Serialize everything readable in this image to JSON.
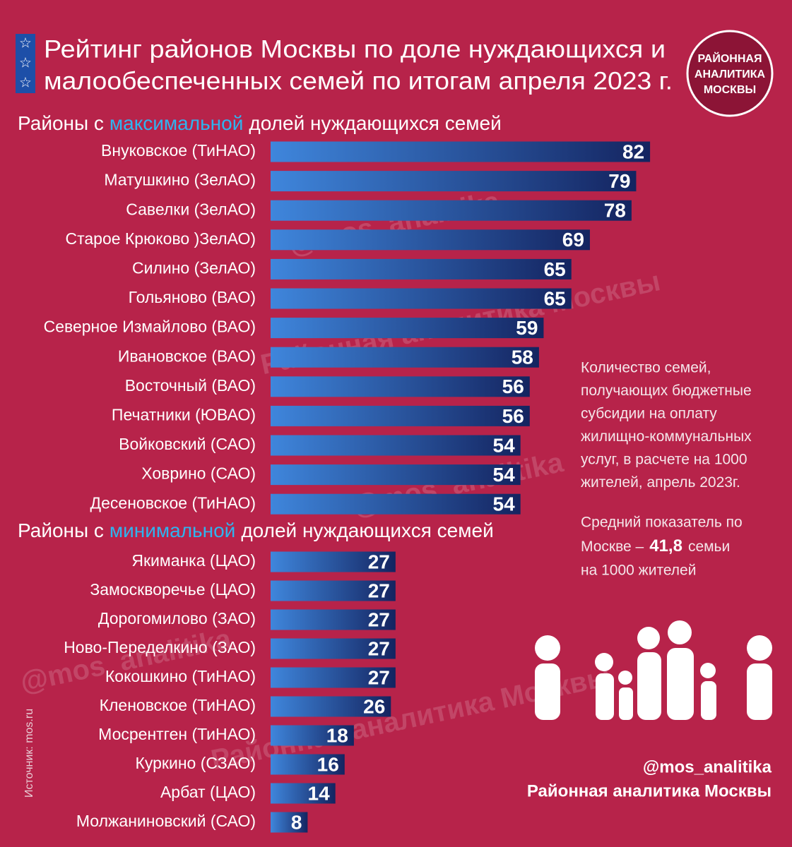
{
  "header": {
    "title_lines": [
      "Рейтинг районов Москвы по доле нуждающихся и",
      "малообеспеченных семей по итогам апреля 2023 г."
    ],
    "logo_lines": [
      "РАЙОННАЯ",
      "АНАЛИТИКА",
      "МОСКВЫ"
    ]
  },
  "chart_data": [
    {
      "type": "bar",
      "title_prefix": "Районы с",
      "title_highlight": "максимальной",
      "title_suffix": "долей нуждающихся семей",
      "highlight_color": "#2fb4ef",
      "color": "#142460",
      "categories": [
        "Внуковское (ТиНАО)",
        "Матушкино (ЗелАО)",
        "Савелки (ЗелАО)",
        "Старое Крюково )ЗелАО)",
        "Силино (ЗелАО)",
        "Гольяново (ВАО)",
        "Северное Измайлово (ВАО)",
        "Ивановское (ВАО)",
        "Восточный (ВАО)",
        "Печатники (ЮВАО)",
        "Войковский (САО)",
        "Ховрино (САО)",
        "Десеновское (ТиНАО)"
      ],
      "values": [
        82,
        79,
        78,
        69,
        65,
        65,
        59,
        58,
        56,
        56,
        54,
        54,
        54
      ]
    },
    {
      "type": "bar",
      "title_prefix": "Районы с",
      "title_highlight": "минимальной",
      "title_suffix": "долей нуждающихся семей",
      "highlight_color": "#2fb4ef",
      "color": "#142460",
      "categories": [
        "Якиманка (ЦАО)",
        "Замоскворечье (ЦАО)",
        "Дорогомилово (ЗАО)",
        "Ново-Переделкино (ЗАО)",
        "Кокошкино (ТиНАО)",
        "Кленовское (ТиНАО)",
        "Мосрентген (ТиНАО)",
        "Куркино (СЗАО)",
        "Арбат (ЦАО)",
        "Молжаниновский (САО)"
      ],
      "values": [
        27,
        27,
        27,
        27,
        27,
        26,
        18,
        16,
        14,
        8
      ]
    }
  ],
  "notes": {
    "description_lines": [
      "Количество семей,",
      "получающих бюджетные",
      "субсидии на оплату",
      "жилищно-коммунальных",
      "услуг, в расчете на 1000",
      "жителей, апрель 2023г."
    ],
    "average_line1": "Средний показатель по",
    "average_prefix": "Москве –",
    "average_value": "41,8",
    "average_suffix": "семьи",
    "average_line3": "на 1000 жителей"
  },
  "source": "Источник: mos.ru",
  "footer": {
    "handle": "@mos_analitika",
    "name": "Районная аналитика Москвы"
  },
  "watermarks": [
    "@mos_analitika",
    "Районная аналитика Москвы"
  ]
}
